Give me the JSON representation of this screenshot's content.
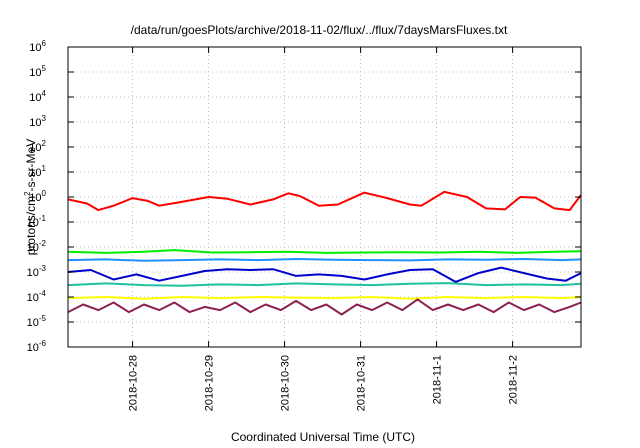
{
  "chart_data": {
    "type": "line",
    "title": "/data/run/goesPlots/archive/2018-11-02/flux/../flux/7daysMarsFluxes.txt",
    "xlabel": "Coordinated Universal Time (UTC)",
    "ylabel_base": "protons/cm",
    "ylabel_sup": "2",
    "ylabel_rest": "-s-sr-MeV",
    "yscale": "log",
    "ylim": [
      1e-06,
      1000000.0
    ],
    "xlim": [
      0,
      6.75
    ],
    "x_ticks": [
      {
        "x": 0.85,
        "label": "2018-10-28"
      },
      {
        "x": 1.85,
        "label": "2018-10-29"
      },
      {
        "x": 2.85,
        "label": "2018-10-30"
      },
      {
        "x": 3.85,
        "label": "2018-10-31"
      },
      {
        "x": 4.85,
        "label": "2018-11-1"
      },
      {
        "x": 5.85,
        "label": "2018-11-2"
      }
    ],
    "y_ticks": [
      {
        "exp": 6,
        "label": "10",
        "sup": "6"
      },
      {
        "exp": 5,
        "label": "10",
        "sup": "5"
      },
      {
        "exp": 4,
        "label": "10",
        "sup": "4"
      },
      {
        "exp": 3,
        "label": "10",
        "sup": "3"
      },
      {
        "exp": 2,
        "label": "10",
        "sup": "2"
      },
      {
        "exp": 1,
        "label": "10",
        "sup": "1"
      },
      {
        "exp": 0,
        "label": "10",
        "sup": "0"
      },
      {
        "exp": -1,
        "label": "10",
        "sup": "-1"
      },
      {
        "exp": -2,
        "label": "10",
        "sup": "-2"
      },
      {
        "exp": -3,
        "label": "10",
        "sup": "-3"
      },
      {
        "exp": -4,
        "label": "10",
        "sup": "-4"
      },
      {
        "exp": -5,
        "label": "10",
        "sup": "-5"
      },
      {
        "exp": -6,
        "label": "10",
        "sup": "-6"
      }
    ],
    "grid": true,
    "series": [
      {
        "color": "#ff0000",
        "x": [
          0,
          0.25,
          0.4,
          0.6,
          0.85,
          1.05,
          1.2,
          1.45,
          1.85,
          2.1,
          2.4,
          2.7,
          2.9,
          3.05,
          3.3,
          3.55,
          3.9,
          4.2,
          4.5,
          4.65,
          4.95,
          5.25,
          5.5,
          5.75,
          5.95,
          6.15,
          6.4,
          6.6,
          6.75
        ],
        "y": [
          0.8,
          0.55,
          0.3,
          0.45,
          0.9,
          0.7,
          0.45,
          0.6,
          1.0,
          0.85,
          0.5,
          0.8,
          1.4,
          1.1,
          0.45,
          0.5,
          1.5,
          0.9,
          0.5,
          0.45,
          1.6,
          1.0,
          0.35,
          0.32,
          1.0,
          0.95,
          0.35,
          0.3,
          1.2
        ]
      },
      {
        "color": "#00ee00",
        "x": [
          0,
          0.5,
          1.0,
          1.4,
          1.9,
          2.4,
          2.9,
          3.4,
          3.9,
          4.4,
          4.9,
          5.4,
          5.9,
          6.4,
          6.75
        ],
        "y": [
          0.0065,
          0.0058,
          0.0065,
          0.0075,
          0.006,
          0.0062,
          0.0065,
          0.0058,
          0.006,
          0.0062,
          0.006,
          0.0065,
          0.0058,
          0.0065,
          0.0068
        ]
      },
      {
        "color": "#1e90ff",
        "x": [
          0,
          0.5,
          1.0,
          1.5,
          2.0,
          2.5,
          3.0,
          3.5,
          4.0,
          4.5,
          5.0,
          5.5,
          6.0,
          6.5,
          6.75
        ],
        "y": [
          0.003,
          0.0032,
          0.0028,
          0.003,
          0.0032,
          0.003,
          0.0033,
          0.0031,
          0.003,
          0.0029,
          0.0032,
          0.0031,
          0.0033,
          0.003,
          0.0032
        ]
      },
      {
        "color": "#0000cc",
        "x": [
          0,
          0.3,
          0.6,
          0.9,
          1.2,
          1.5,
          1.8,
          2.1,
          2.4,
          2.7,
          3.0,
          3.3,
          3.6,
          3.9,
          4.2,
          4.5,
          4.8,
          5.1,
          5.4,
          5.7,
          6.0,
          6.3,
          6.55,
          6.75
        ],
        "y": [
          0.001,
          0.0012,
          0.0005,
          0.0008,
          0.00045,
          0.0007,
          0.0011,
          0.0013,
          0.0012,
          0.0013,
          0.0007,
          0.0008,
          0.0007,
          0.0005,
          0.0008,
          0.0012,
          0.0013,
          0.0004,
          0.0009,
          0.0015,
          0.0009,
          0.00055,
          0.00045,
          0.0009
        ]
      },
      {
        "color": "#20c0a0",
        "x": [
          0,
          0.5,
          1.0,
          1.5,
          2.0,
          2.5,
          3.0,
          3.5,
          4.0,
          4.5,
          5.0,
          5.5,
          6.0,
          6.5,
          6.75
        ],
        "y": [
          0.0003,
          0.00035,
          0.0003,
          0.00028,
          0.00032,
          0.0003,
          0.00035,
          0.00032,
          0.0003,
          0.00034,
          0.00036,
          0.0003,
          0.00032,
          0.0003,
          0.00034
        ]
      },
      {
        "color": "#ffff00",
        "x": [
          0,
          0.5,
          1.0,
          1.5,
          2.0,
          2.5,
          3.0,
          3.5,
          4.0,
          4.5,
          5.0,
          5.5,
          6.0,
          6.5,
          6.75
        ],
        "y": [
          9e-05,
          0.0001,
          8.5e-05,
          0.0001,
          9e-05,
          0.0001,
          9.5e-05,
          9e-05,
          0.0001,
          8.5e-05,
          0.0001,
          9e-05,
          0.0001,
          9e-05,
          0.0001
        ]
      },
      {
        "color": "#8b2252",
        "x": [
          0,
          0.2,
          0.4,
          0.6,
          0.8,
          1.0,
          1.2,
          1.4,
          1.6,
          1.8,
          2.0,
          2.2,
          2.4,
          2.6,
          2.8,
          3.0,
          3.2,
          3.4,
          3.6,
          3.8,
          4.0,
          4.2,
          4.4,
          4.6,
          4.8,
          5.0,
          5.2,
          5.4,
          5.6,
          5.8,
          6.0,
          6.2,
          6.4,
          6.6,
          6.75
        ],
        "y": [
          2.5e-05,
          5e-05,
          3e-05,
          6e-05,
          2.5e-05,
          5e-05,
          3e-05,
          6e-05,
          2.5e-05,
          4e-05,
          3e-05,
          6e-05,
          2.5e-05,
          5e-05,
          3e-05,
          7e-05,
          3e-05,
          5e-05,
          2e-05,
          5e-05,
          3e-05,
          6e-05,
          3e-05,
          8e-05,
          3e-05,
          5e-05,
          3e-05,
          5e-05,
          2.5e-05,
          6e-05,
          3e-05,
          5e-05,
          2.5e-05,
          4e-05,
          6e-05
        ]
      }
    ]
  }
}
